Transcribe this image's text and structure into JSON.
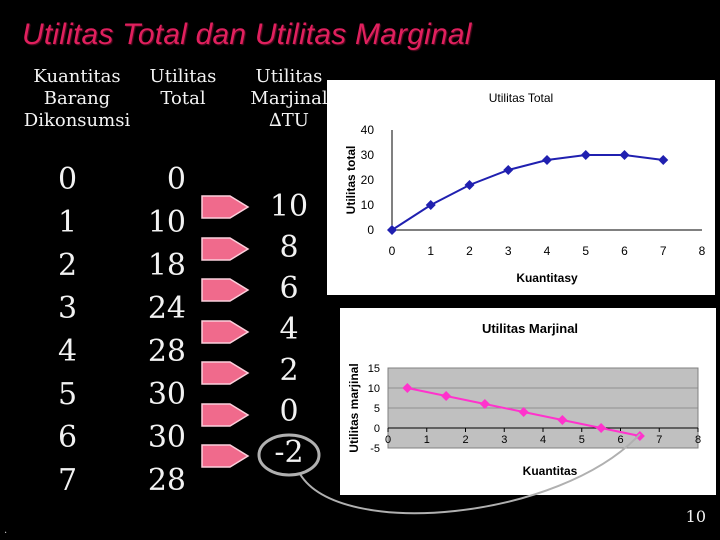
{
  "slide": {
    "title": "Utilitas Total dan Utilitas Marginal",
    "headers": {
      "col0": [
        "Kuantitas",
        "Barang",
        "Dikonsumsi"
      ],
      "col1": [
        "Utilitas",
        "Total"
      ],
      "col2": [
        "Utilitas",
        "Marjinal",
        "∆TU"
      ]
    },
    "quantities": [
      "0",
      "1",
      "2",
      "3",
      "4",
      "5",
      "6",
      "7"
    ],
    "total_utility": [
      "0",
      "10",
      "18",
      "24",
      "28",
      "30",
      "30",
      "28"
    ],
    "marginal_utility": [
      "10",
      "8",
      "6",
      "4",
      "2",
      "0",
      "-2"
    ],
    "page_number": "10",
    "bottom_mark": ".",
    "colors": {
      "title": "#e0205e",
      "arrow_fill": "#f06a8c",
      "tu_line": "#2020b0",
      "mu_line": "#ff33cc",
      "callout": "#b0b0b0"
    }
  },
  "chart_data": [
    {
      "type": "line",
      "title": "Utilitas Total",
      "xlabel": "Kuantitasy",
      "ylabel": "Utilitas total",
      "x": [
        0,
        1,
        2,
        3,
        4,
        5,
        6,
        7
      ],
      "series": [
        {
          "values": [
            0,
            10,
            18,
            24,
            28,
            30,
            30,
            28
          ]
        }
      ],
      "xticks": [
        "0",
        "1",
        "2",
        "3",
        "4",
        "5",
        "6",
        "7",
        "8"
      ],
      "yticks": [
        "0",
        "10",
        "20",
        "30",
        "40"
      ],
      "xlim": [
        0,
        8
      ],
      "ylim": [
        0,
        40
      ],
      "grid": false,
      "legend": "none"
    },
    {
      "type": "line",
      "title": "Utilitas Marjinal",
      "xlabel": "Kuantitas",
      "ylabel": "Utilitas marjinal",
      "x": [
        0.5,
        1.5,
        2.5,
        3.5,
        4.5,
        5.5,
        6.5
      ],
      "series": [
        {
          "values": [
            10,
            8,
            6,
            4,
            2,
            0,
            -2
          ]
        }
      ],
      "xticks": [
        "0",
        "1",
        "2",
        "3",
        "4",
        "5",
        "6",
        "7",
        "8"
      ],
      "yticks": [
        "-5",
        "0",
        "5",
        "10",
        "15"
      ],
      "xlim": [
        0,
        8
      ],
      "ylim": [
        -5,
        15
      ],
      "grid": true,
      "legend": "none"
    }
  ]
}
